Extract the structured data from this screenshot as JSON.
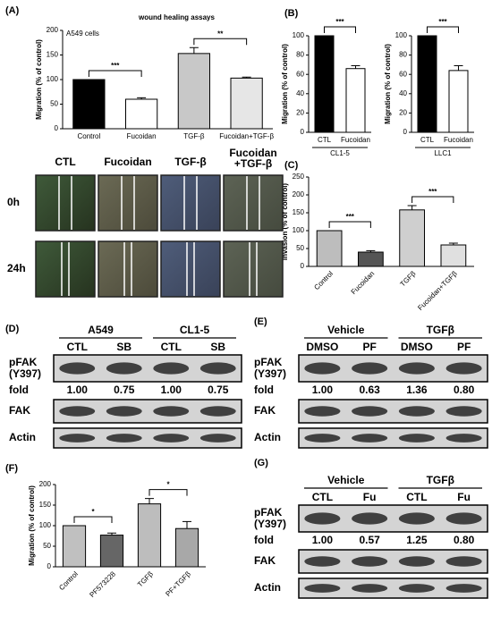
{
  "chart_data": [
    {
      "type": "bar",
      "title": "wound healing assays",
      "annotation": "A549 cells",
      "y_label": "Migration (% of control)",
      "categories": [
        "Control",
        "Fucoidan",
        "TGF-β",
        "Fucoidan+TGF-β"
      ],
      "values": [
        100,
        60,
        153,
        103
      ],
      "errors": [
        0,
        3,
        12,
        2
      ],
      "colors": [
        "#000000",
        "#ffffff",
        "#c8c8c8",
        "#e6e6e6"
      ],
      "ylim": [
        0,
        200
      ],
      "yticks": [
        0,
        50,
        100,
        150,
        200
      ],
      "significance": [
        {
          "label": "***",
          "between": [
            "Control",
            "Fucoidan"
          ]
        },
        {
          "label": "**",
          "between": [
            "TGF-β",
            "Fucoidan+TGF-β"
          ]
        }
      ]
    },
    {
      "type": "bar",
      "y_label": "Migration (% of control)",
      "x_label": "CL1-5",
      "categories": [
        "CTL",
        "Fucoidan"
      ],
      "values": [
        100,
        66
      ],
      "errors": [
        0,
        3
      ],
      "colors": [
        "#000000",
        "#ffffff"
      ],
      "ylim": [
        0,
        100
      ],
      "yticks": [
        0,
        20,
        40,
        60,
        80,
        100
      ],
      "significance": [
        {
          "label": "***",
          "between": [
            "CTL",
            "Fucoidan"
          ]
        }
      ]
    },
    {
      "type": "bar",
      "y_label": "Migration (% of control)",
      "x_label": "LLC1",
      "categories": [
        "CTL",
        "Fucoidan"
      ],
      "values": [
        100,
        64
      ],
      "errors": [
        0,
        5
      ],
      "colors": [
        "#000000",
        "#ffffff"
      ],
      "ylim": [
        0,
        100
      ],
      "yticks": [
        0,
        20,
        40,
        60,
        80,
        100
      ],
      "significance": [
        {
          "label": "***",
          "between": [
            "CTL",
            "Fucoidan"
          ]
        }
      ]
    },
    {
      "type": "bar",
      "y_label": "invasion (% of control)",
      "xtick_rotation": 45,
      "categories": [
        "Control",
        "Fucoidan",
        "TGFβ",
        "Fucoidan+TGFβ"
      ],
      "values": [
        100,
        40,
        158,
        60
      ],
      "errors": [
        0,
        4,
        12,
        5
      ],
      "colors": [
        "#bdbdbd",
        "#555555",
        "#cfcfcf",
        "#e0e0e0"
      ],
      "ylim": [
        0,
        250
      ],
      "yticks": [
        0,
        50,
        100,
        150,
        200,
        250
      ],
      "significance": [
        {
          "label": "***",
          "between": [
            "Control",
            "Fucoidan"
          ]
        },
        {
          "label": "***",
          "between": [
            "TGFβ",
            "Fucoidan+TGFβ"
          ]
        }
      ]
    },
    {
      "type": "bar",
      "y_label": "Migration (% of control)",
      "xtick_rotation": 45,
      "categories": [
        "Control",
        "PF573228",
        "TGFβ",
        "PF+TGFβ"
      ],
      "values": [
        100,
        77,
        153,
        93
      ],
      "errors": [
        0,
        5,
        13,
        17
      ],
      "colors": [
        "#c0c0c0",
        "#666666",
        "#bdbdbd",
        "#a8a8a8"
      ],
      "ylim": [
        0,
        200
      ],
      "yticks": [
        0,
        50,
        100,
        150,
        200
      ],
      "significance": [
        {
          "label": "*",
          "between": [
            "Control",
            "PF573228"
          ]
        },
        {
          "label": "*",
          "between": [
            "TGFβ",
            "PF+TGFβ"
          ]
        }
      ]
    }
  ],
  "panel_labels": [
    "(A)",
    "(B)",
    "(C)",
    "(D)",
    "(E)",
    "(F)",
    "(G)"
  ],
  "wound_images": {
    "columns": [
      [
        "CTL"
      ],
      [
        "Fucoidan"
      ],
      [
        "TGF-β"
      ],
      [
        "Fucoidan",
        "+TGF-β"
      ]
    ],
    "rows": [
      "0h",
      "24h"
    ]
  },
  "blots": [
    {
      "groups": [
        "A549",
        "CL1-5"
      ],
      "lanes": [
        "CTL",
        "SB",
        "CTL",
        "SB"
      ],
      "phospho_label": [
        "pFAK",
        "(Y397)"
      ],
      "fold_label": "fold",
      "fold": [
        "1.00",
        "0.75",
        "1.00",
        "0.75"
      ],
      "total_label": "FAK",
      "loading_label": "Actin"
    },
    {
      "groups": [
        "Vehicle",
        "TGFβ"
      ],
      "lanes": [
        "DMSO",
        "PF",
        "DMSO",
        "PF"
      ],
      "phospho_label": [
        "pFAK",
        "(Y397)"
      ],
      "fold_label": "fold",
      "fold": [
        "1.00",
        "0.63",
        "1.36",
        "0.80"
      ],
      "total_label": "FAK",
      "loading_label": "Actin"
    },
    {
      "groups": [
        "Vehicle",
        "TGFβ"
      ],
      "lanes": [
        "CTL",
        "Fu",
        "CTL",
        "Fu"
      ],
      "phospho_label": [
        "pFAK",
        "(Y397)"
      ],
      "fold_label": "fold",
      "fold": [
        "1.00",
        "0.57",
        "1.25",
        "0.80"
      ],
      "total_label": "FAK",
      "loading_label": "Actin"
    }
  ]
}
